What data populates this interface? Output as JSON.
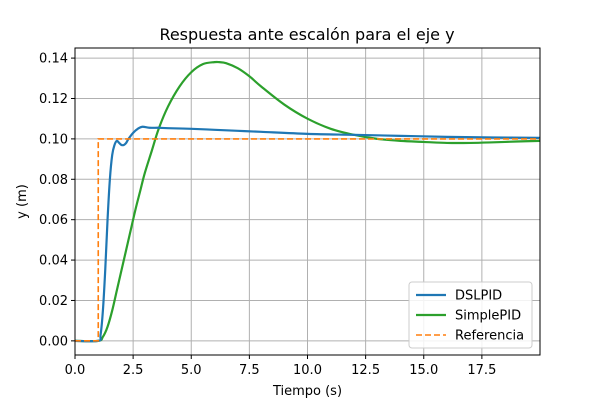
{
  "chart_data": {
    "type": "line",
    "title": "Respuesta ante escalón para el eje y",
    "xlabel": "Tiempo (s)",
    "ylabel": "y (m)",
    "xlim": [
      0,
      20
    ],
    "ylim": [
      -0.007,
      0.145
    ],
    "xticks": [
      0.0,
      2.5,
      5.0,
      7.5,
      10.0,
      12.5,
      15.0,
      17.5
    ],
    "xtick_labels": [
      "0.0",
      "2.5",
      "5.0",
      "7.5",
      "10.0",
      "12.5",
      "15.0",
      "17.5"
    ],
    "yticks": [
      0.0,
      0.02,
      0.04,
      0.06,
      0.08,
      0.1,
      0.12,
      0.14
    ],
    "ytick_labels": [
      "0.00",
      "0.02",
      "0.04",
      "0.06",
      "0.08",
      "0.10",
      "0.12",
      "0.14"
    ],
    "grid": true,
    "legend_position": "lower-right",
    "series": [
      {
        "name": "DSLPID",
        "color": "#1f77b4",
        "style": "solid",
        "x": [
          0,
          1.0,
          1.1,
          1.2,
          1.3,
          1.4,
          1.5,
          1.6,
          1.7,
          1.8,
          1.9,
          2.0,
          2.1,
          2.2,
          2.3,
          2.5,
          2.7,
          2.9,
          3.2,
          3.6,
          4.0,
          5.0,
          6.0,
          7.0,
          8.0,
          10.0,
          12.0,
          14.0,
          16.0,
          18.0,
          20.0
        ],
        "y": [
          0,
          0,
          0.003,
          0.015,
          0.035,
          0.06,
          0.08,
          0.092,
          0.097,
          0.099,
          0.098,
          0.097,
          0.097,
          0.098,
          0.1,
          0.103,
          0.105,
          0.106,
          0.1055,
          0.1055,
          0.1053,
          0.105,
          0.1045,
          0.104,
          0.1035,
          0.1025,
          0.102,
          0.1015,
          0.101,
          0.1007,
          0.1005
        ]
      },
      {
        "name": "SimplePID",
        "color": "#2ca02c",
        "style": "solid",
        "x": [
          0,
          1.0,
          1.2,
          1.4,
          1.6,
          1.8,
          2.0,
          2.2,
          2.4,
          2.6,
          2.8,
          3.0,
          3.3,
          3.6,
          4.0,
          4.5,
          5.0,
          5.5,
          6.0,
          6.2,
          6.5,
          7.0,
          7.5,
          8.0,
          9.0,
          10.0,
          11.0,
          12.0,
          13.0,
          14.0,
          15.0,
          16.0,
          17.0,
          18.0,
          19.0,
          20.0
        ],
        "y": [
          0,
          0,
          0.002,
          0.007,
          0.015,
          0.025,
          0.035,
          0.045,
          0.055,
          0.065,
          0.074,
          0.083,
          0.094,
          0.105,
          0.116,
          0.126,
          0.133,
          0.137,
          0.138,
          0.138,
          0.1375,
          0.135,
          0.131,
          0.126,
          0.117,
          0.11,
          0.105,
          0.102,
          0.1,
          0.099,
          0.0985,
          0.098,
          0.098,
          0.0983,
          0.0987,
          0.099
        ]
      },
      {
        "name": "Referencia",
        "color": "#ff7f0e",
        "style": "dashed",
        "x": [
          0,
          1.0,
          1.0,
          20.0
        ],
        "y": [
          0,
          0,
          0.1,
          0.1
        ]
      }
    ]
  }
}
